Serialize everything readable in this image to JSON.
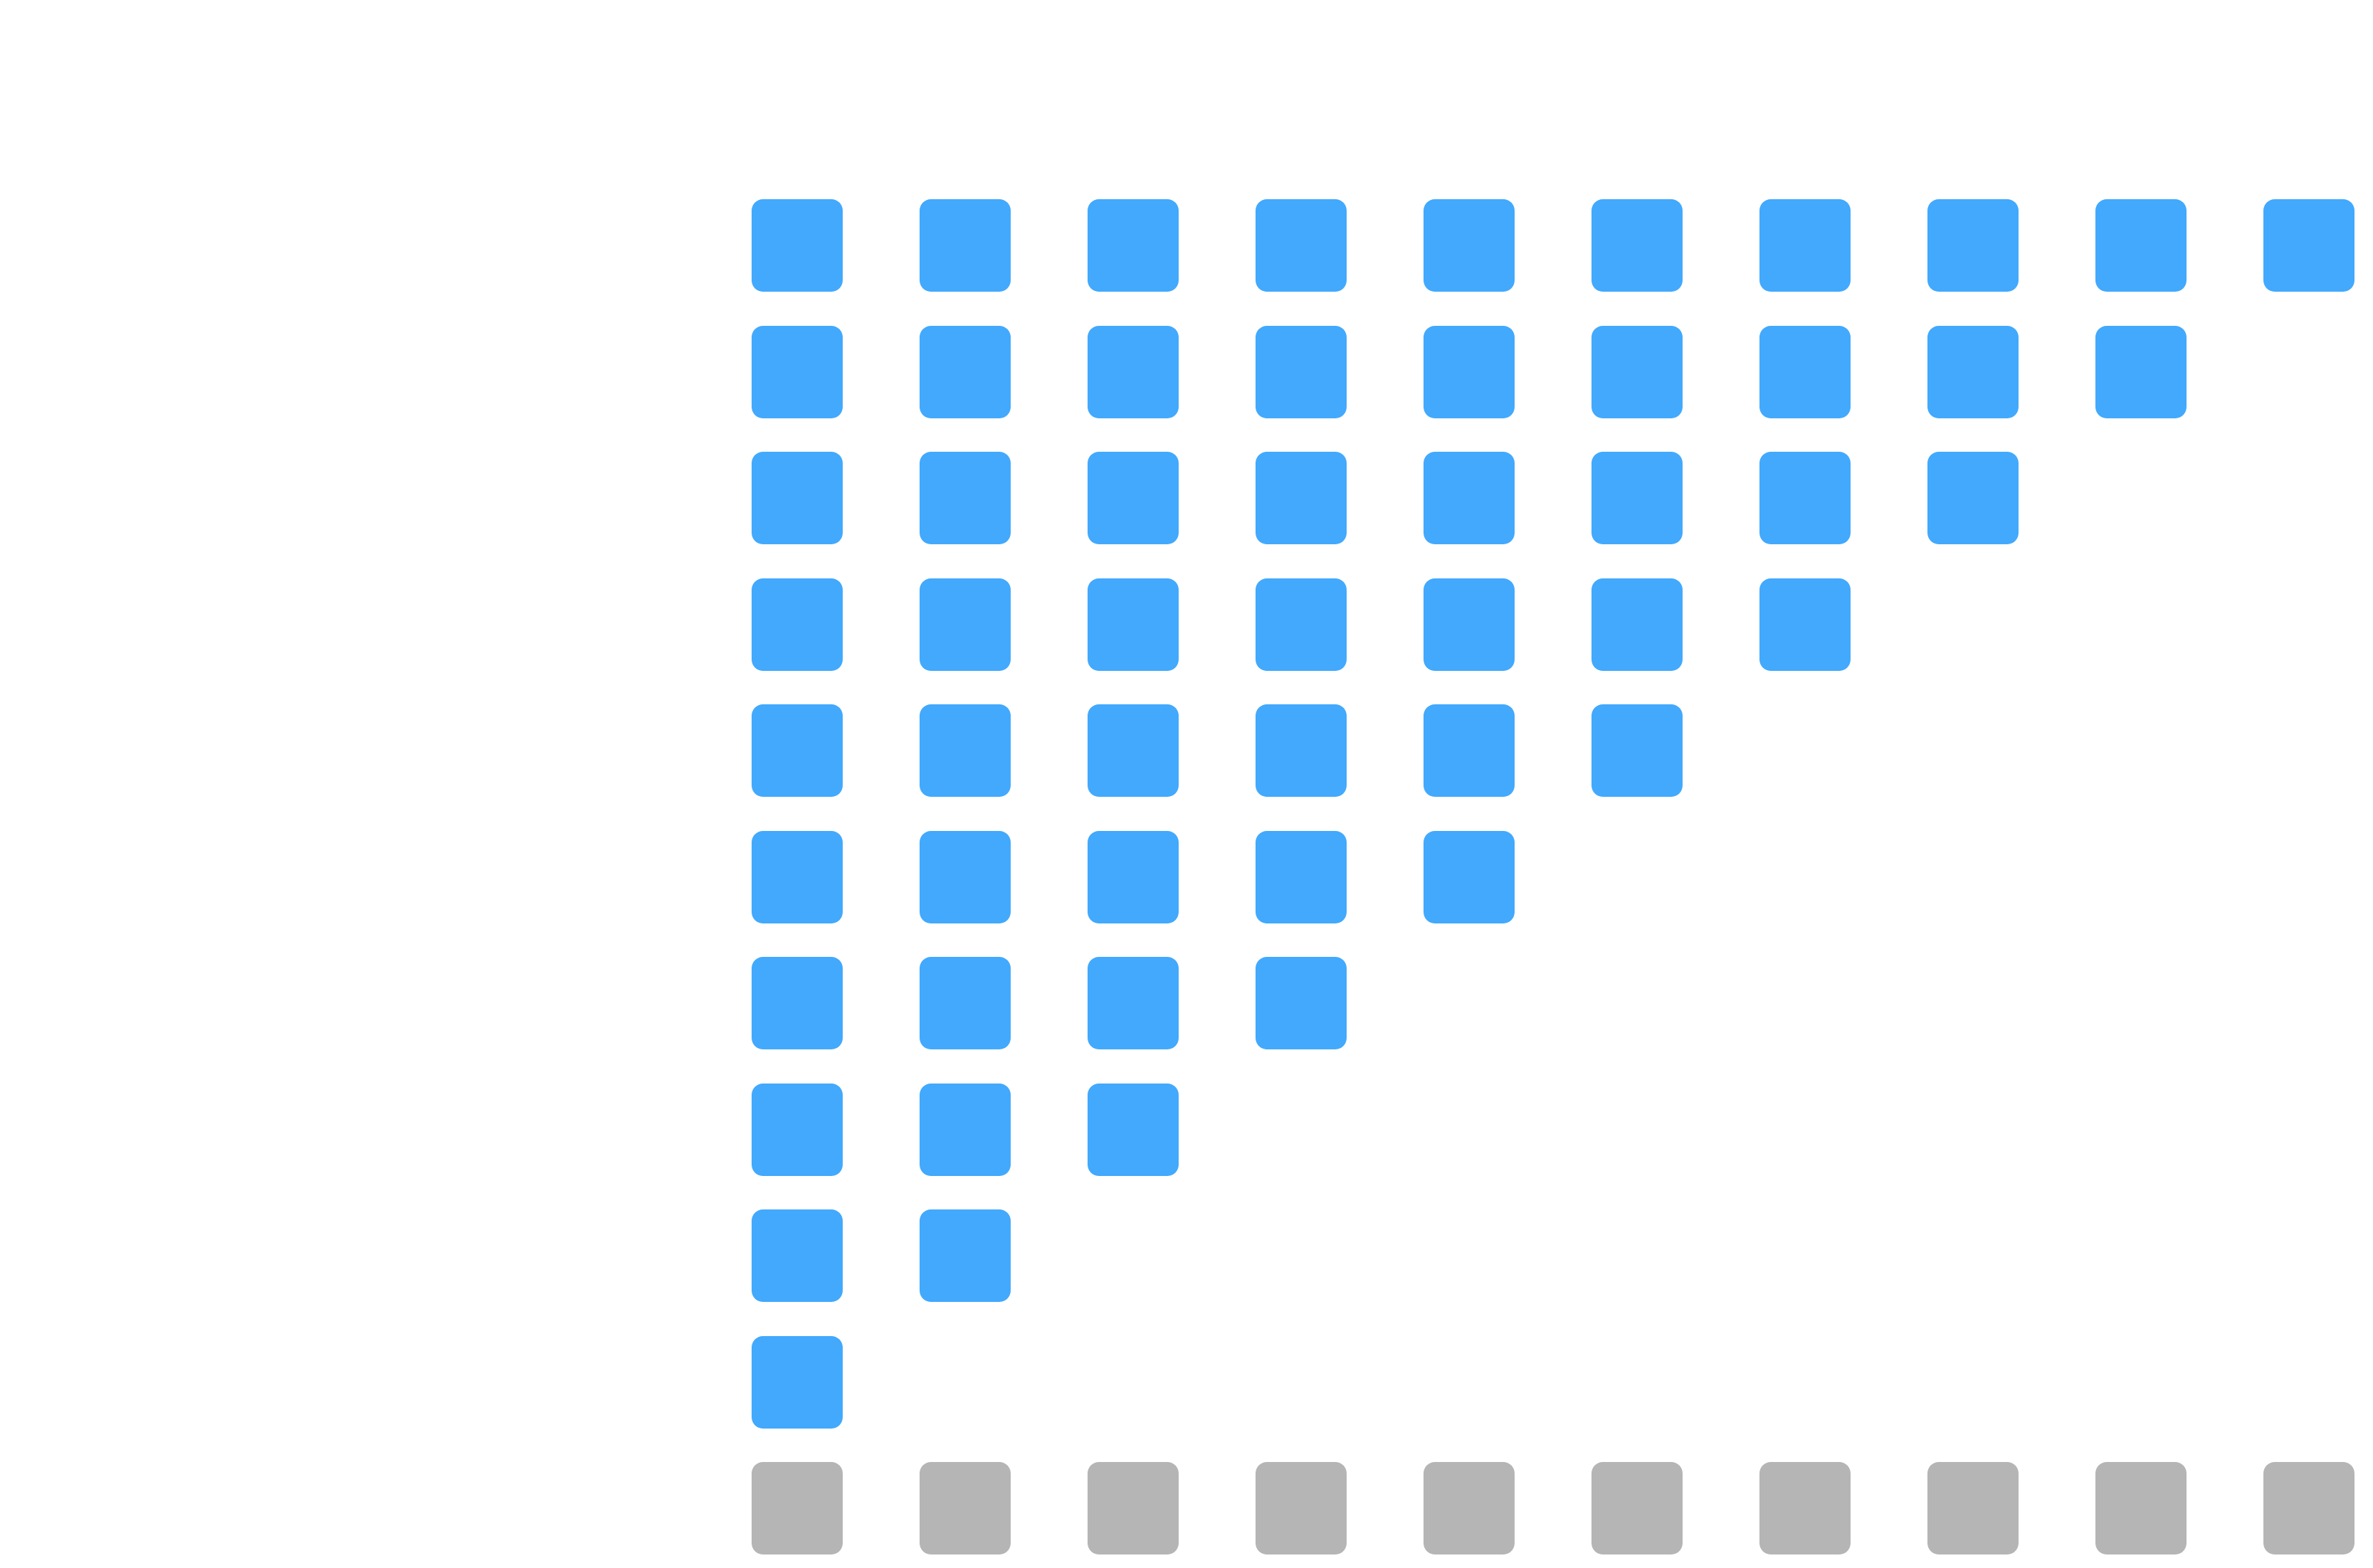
{
  "grid": {
    "rows": 11,
    "columns": 10,
    "filled_per_row": [
      10,
      9,
      8,
      7,
      6,
      5,
      4,
      3,
      2,
      1,
      10
    ],
    "row_kinds": [
      "active",
      "active",
      "active",
      "active",
      "active",
      "active",
      "active",
      "active",
      "active",
      "active",
      "base"
    ]
  },
  "colors": {
    "active": "#42a9fd",
    "base": "#b5b5b5",
    "background": "#ffffff"
  }
}
